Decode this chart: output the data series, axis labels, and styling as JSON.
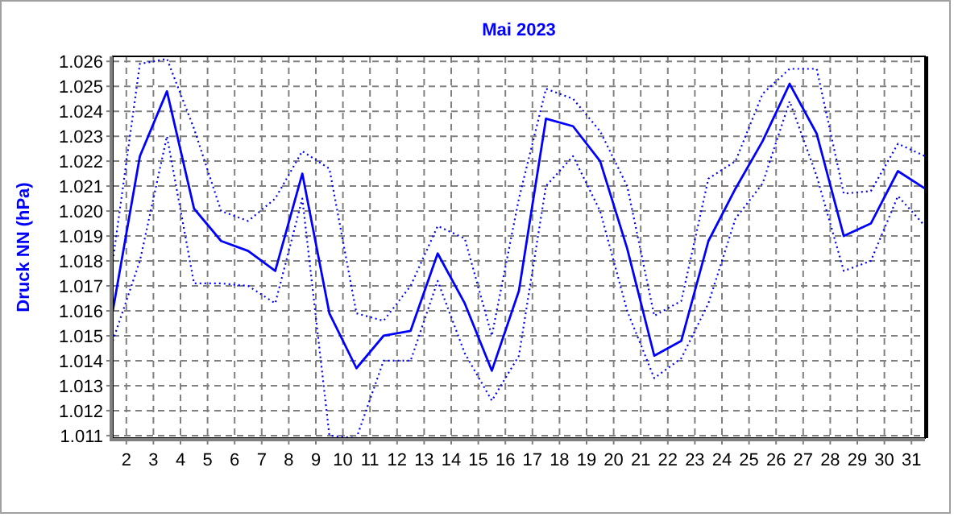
{
  "chart_data": {
    "type": "line",
    "title": "Mai 2023",
    "ylabel": "Druck NN  (hPa)",
    "x": [
      1.5,
      2.5,
      3.5,
      4.5,
      5.5,
      6.5,
      7.5,
      8.5,
      9.5,
      10.5,
      11.5,
      12.5,
      13.5,
      14.5,
      15.5,
      16.5,
      17.5,
      18.5,
      19.5,
      20.5,
      21.5,
      22.5,
      23.5,
      24.5,
      25.5,
      26.5,
      27.5,
      28.5,
      29.5,
      30.5,
      31.5
    ],
    "series": [
      {
        "color": "#0000ff",
        "line_style": "dotted",
        "values": [
          1.018,
          1.0259,
          1.0261,
          1.0233,
          1.02,
          1.0196,
          1.0205,
          1.0224,
          1.0217,
          1.0159,
          1.0156,
          1.017,
          1.0194,
          1.0189,
          1.015,
          1.0205,
          1.0249,
          1.0245,
          1.0232,
          1.021,
          1.0158,
          1.0164,
          1.0213,
          1.022,
          1.0247,
          1.0257,
          1.0257,
          1.0207,
          1.0208,
          1.0227,
          1.0222
        ]
      },
      {
        "color": "#0000ff",
        "line_style": "solid",
        "values": [
          1.016,
          1.0222,
          1.0248,
          1.0201,
          1.0188,
          1.0184,
          1.0176,
          1.0215,
          1.0159,
          1.0137,
          1.015,
          1.0152,
          1.0183,
          1.0163,
          1.0136,
          1.0168,
          1.0237,
          1.0234,
          1.022,
          1.0185,
          1.0142,
          1.0148,
          1.0188,
          1.0209,
          1.0228,
          1.0251,
          1.0231,
          1.019,
          1.0195,
          1.0216,
          1.0209
        ]
      },
      {
        "color": "#0000ff",
        "line_style": "dotted",
        "values": [
          1.0148,
          1.018,
          1.023,
          1.0171,
          1.0171,
          1.017,
          1.0163,
          1.0205,
          1.011,
          1.0109,
          1.014,
          1.014,
          1.0172,
          1.0143,
          1.0124,
          1.0142,
          1.021,
          1.0222,
          1.02,
          1.016,
          1.0133,
          1.0141,
          1.0163,
          1.0197,
          1.0211,
          1.0244,
          1.0214,
          1.0176,
          1.018,
          1.0206,
          1.0194
        ]
      }
    ],
    "xlim": [
      1.5,
      31.5
    ],
    "xticks": [
      2,
      3,
      4,
      5,
      6,
      7,
      8,
      9,
      10,
      11,
      12,
      13,
      14,
      15,
      16,
      17,
      18,
      19,
      20,
      21,
      22,
      23,
      24,
      25,
      26,
      27,
      28,
      29,
      30,
      31
    ],
    "ylim": [
      1.0109,
      1.0262
    ],
    "yticks": [
      1.011,
      1.012,
      1.013,
      1.014,
      1.015,
      1.016,
      1.017,
      1.018,
      1.019,
      {
        "value": 1.02,
        "label": "1.020"
      },
      1.021,
      1.022,
      1.023,
      1.024,
      1.025,
      1.026
    ],
    "grid": true,
    "marker": "none"
  }
}
